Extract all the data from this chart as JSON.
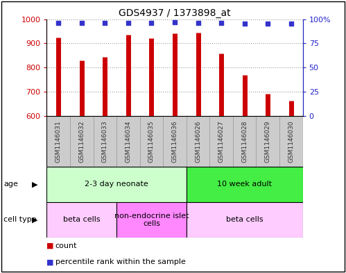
{
  "title": "GDS4937 / 1373898_at",
  "samples": [
    "GSM1146031",
    "GSM1146032",
    "GSM1146033",
    "GSM1146034",
    "GSM1146035",
    "GSM1146036",
    "GSM1146026",
    "GSM1146027",
    "GSM1146028",
    "GSM1146029",
    "GSM1146030"
  ],
  "counts": [
    925,
    830,
    845,
    935,
    920,
    940,
    945,
    858,
    768,
    693,
    663
  ],
  "percentiles": [
    96,
    96,
    96,
    96,
    96,
    97,
    96,
    96,
    95,
    95,
    95
  ],
  "ylim_left": [
    600,
    1000
  ],
  "ylim_right": [
    0,
    100
  ],
  "yticks_left": [
    600,
    700,
    800,
    900,
    1000
  ],
  "yticks_right": [
    0,
    25,
    50,
    75,
    100
  ],
  "bar_color": "#CC0000",
  "dot_color": "#3333CC",
  "age_groups": [
    {
      "label": "2-3 day neonate",
      "start": 0,
      "end": 6,
      "color": "#ccffcc"
    },
    {
      "label": "10 week adult",
      "start": 6,
      "end": 11,
      "color": "#44ee44"
    }
  ],
  "cell_type_groups": [
    {
      "label": "beta cells",
      "start": 0,
      "end": 3,
      "color": "#ffccff"
    },
    {
      "label": "non-endocrine islet\ncells",
      "start": 3,
      "end": 6,
      "color": "#ff88ff"
    },
    {
      "label": "beta cells",
      "start": 6,
      "end": 11,
      "color": "#ffccff"
    }
  ],
  "background_color": "#ffffff",
  "grid_color": "#999999",
  "sample_bg_color": "#cccccc",
  "sample_border_color": "#999999"
}
